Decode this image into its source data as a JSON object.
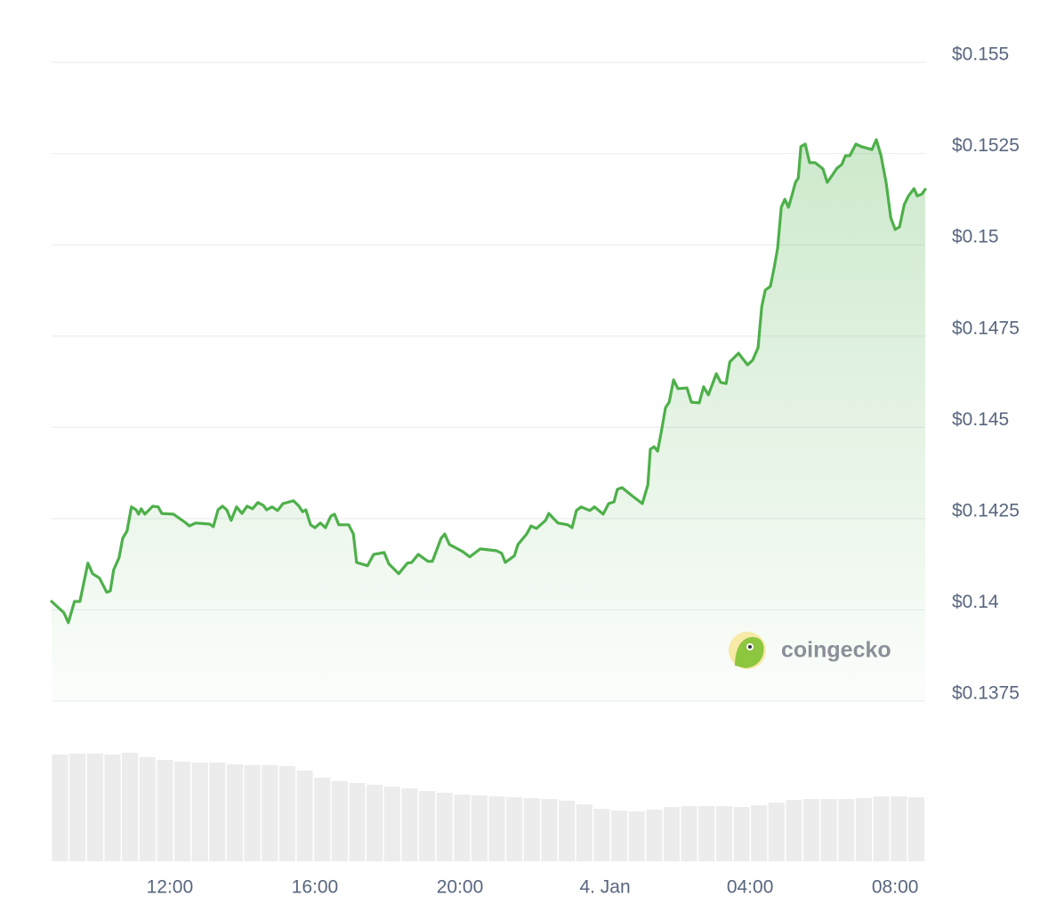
{
  "chart_data": {
    "type": "line",
    "watermark": "coingecko",
    "x": [
      8.74,
      9.08,
      9.2,
      9.37,
      9.52,
      9.74,
      9.87,
      10.06,
      10.26,
      10.36,
      10.45,
      10.6,
      10.7,
      10.82,
      10.94,
      11.07,
      11.14,
      11.21,
      11.31,
      11.53,
      11.68,
      11.78,
      12.1,
      12.42,
      12.54,
      12.71,
      13.1,
      13.2,
      13.33,
      13.45,
      13.57,
      13.69,
      13.84,
      13.99,
      14.13,
      14.28,
      14.43,
      14.58,
      14.67,
      14.82,
      14.97,
      15.12,
      15.41,
      15.56,
      15.66,
      15.75,
      15.88,
      16.0,
      16.15,
      16.29,
      16.44,
      16.54,
      16.66,
      16.93,
      17.06,
      17.15,
      17.45,
      17.62,
      17.91,
      18.04,
      18.31,
      18.55,
      18.67,
      18.85,
      19.12,
      19.24,
      19.48,
      19.58,
      19.71,
      20.07,
      20.27,
      20.56,
      21.01,
      21.15,
      21.25,
      21.5,
      21.6,
      21.84,
      21.96,
      22.11,
      22.36,
      22.45,
      22.7,
      22.97,
      23.09,
      23.21,
      23.34,
      23.58,
      23.71,
      23.95,
      24.1,
      24.25,
      24.34,
      24.47,
      24.74,
      25.03,
      25.18,
      25.25,
      25.35,
      25.45,
      25.55,
      25.67,
      25.77,
      25.89,
      26.01,
      26.26,
      26.38,
      26.6,
      26.72,
      26.85,
      27.07,
      27.19,
      27.34,
      27.44,
      27.68,
      27.93,
      28.07,
      28.22,
      28.32,
      28.42,
      28.56,
      28.66,
      28.76,
      28.86,
      28.96,
      29.06,
      29.15,
      29.25,
      29.33,
      29.4,
      29.52,
      29.64,
      29.79,
      30.01,
      30.13,
      30.4,
      30.53,
      30.63,
      30.75,
      30.92,
      31.07,
      31.36,
      31.48,
      31.61,
      31.75,
      31.88,
      32.0,
      32.12,
      32.25,
      32.37,
      32.52,
      32.61,
      32.74,
      32.83
    ],
    "series": [
      {
        "color": "#4eb04a",
        "values": [
          0.14023,
          0.13992,
          0.13965,
          0.14023,
          0.14023,
          0.14128,
          0.14099,
          0.14087,
          0.14048,
          0.14052,
          0.14109,
          0.14143,
          0.14196,
          0.14216,
          0.14282,
          0.14274,
          0.14262,
          0.14277,
          0.14262,
          0.14284,
          0.14282,
          0.14264,
          0.14262,
          0.1424,
          0.1423,
          0.14238,
          0.14235,
          0.14228,
          0.14274,
          0.14284,
          0.14274,
          0.14245,
          0.14282,
          0.14264,
          0.14284,
          0.14277,
          0.14294,
          0.14286,
          0.14274,
          0.14282,
          0.14272,
          0.14291,
          0.14299,
          0.14284,
          0.14269,
          0.14274,
          0.14233,
          0.14225,
          0.14238,
          0.14225,
          0.14257,
          0.14262,
          0.14233,
          0.14233,
          0.14208,
          0.1413,
          0.14121,
          0.14152,
          0.14157,
          0.14126,
          0.14099,
          0.14128,
          0.1413,
          0.14152,
          0.14133,
          0.14133,
          0.14196,
          0.14208,
          0.14179,
          0.1416,
          0.14145,
          0.14167,
          0.14162,
          0.14155,
          0.1413,
          0.14148,
          0.14179,
          0.14208,
          0.1423,
          0.14223,
          0.14245,
          0.14264,
          0.14238,
          0.14233,
          0.14225,
          0.14272,
          0.14282,
          0.14272,
          0.14282,
          0.14262,
          0.14291,
          0.14296,
          0.1433,
          0.14335,
          0.14313,
          0.14291,
          0.14342,
          0.1444,
          0.14447,
          0.14435,
          0.14486,
          0.14554,
          0.14569,
          0.1463,
          0.14606,
          0.14608,
          0.14569,
          0.14567,
          0.14611,
          0.14589,
          0.14647,
          0.14623,
          0.1462,
          0.14679,
          0.14703,
          0.14671,
          0.14684,
          0.14718,
          0.1483,
          0.14876,
          0.14886,
          0.14935,
          0.14991,
          0.15103,
          0.15125,
          0.15103,
          0.15134,
          0.15171,
          0.15183,
          0.15269,
          0.15276,
          0.15225,
          0.15225,
          0.15208,
          0.15171,
          0.1521,
          0.1522,
          0.15244,
          0.15244,
          0.15276,
          0.15269,
          0.15261,
          0.15288,
          0.15244,
          0.15171,
          0.15074,
          0.15042,
          0.15049,
          0.1511,
          0.15134,
          0.15154,
          0.15134,
          0.15139,
          0.15152
        ]
      }
    ],
    "volume": {
      "color": "#ececec",
      "values": [
        120,
        121,
        121,
        120,
        122,
        117,
        114,
        112,
        111,
        111,
        109,
        108,
        108,
        107,
        102,
        94,
        90,
        88,
        86,
        84,
        82,
        79,
        77,
        75,
        74,
        73,
        72,
        71,
        70,
        68,
        64,
        59,
        57,
        56,
        58,
        61,
        62,
        62,
        62,
        61,
        63,
        66,
        69,
        70,
        70,
        70,
        71,
        73,
        73,
        72
      ],
      "ylim": [
        0,
        120
      ]
    },
    "xlim": [
      8.74,
      32.83
    ],
    "xticks": [
      {
        "value": 12,
        "label": "12:00"
      },
      {
        "value": 16,
        "label": "16:00"
      },
      {
        "value": 20,
        "label": "20:00"
      },
      {
        "value": 24,
        "label": "4. Jan"
      },
      {
        "value": 28,
        "label": "04:00"
      },
      {
        "value": 32,
        "label": "08:00"
      }
    ],
    "ylim": [
      0.1375,
      0.155
    ],
    "yticks": [
      {
        "value": 0.155,
        "label": "$0.155"
      },
      {
        "value": 0.1525,
        "label": "$0.1525"
      },
      {
        "value": 0.15,
        "label": "$0.15"
      },
      {
        "value": 0.1475,
        "label": "$0.1475"
      },
      {
        "value": 0.145,
        "label": "$0.145"
      },
      {
        "value": 0.1425,
        "label": "$0.1425"
      },
      {
        "value": 0.14,
        "label": "$0.14"
      },
      {
        "value": 0.1375,
        "label": "$0.1375"
      }
    ],
    "grid": true
  }
}
